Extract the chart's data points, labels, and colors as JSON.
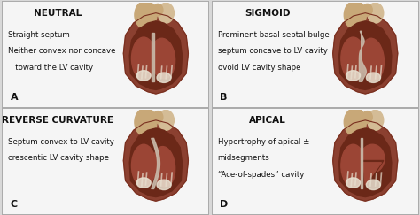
{
  "bg_color": "#d8d8d8",
  "panel_bg": "#f5f5f5",
  "border_color": "#aaaaaa",
  "text_color": "#111111",
  "panels": [
    {
      "id": "A",
      "title": "NEUTRAL",
      "lines": [
        "Straight septum",
        "Neither convex nor concave",
        "   toward the LV cavity"
      ],
      "label": "A",
      "row": 0,
      "col": 0,
      "style": "neutral"
    },
    {
      "id": "B",
      "title": "SIGMOID",
      "lines": [
        "Prominent basal septal bulge",
        "septum concave to LV cavity",
        "ovoid LV cavity shape"
      ],
      "label": "B",
      "row": 0,
      "col": 1,
      "style": "sigmoid"
    },
    {
      "id": "C",
      "title": "REVERSE CURVATURE",
      "lines": [
        "Septum convex to LV cavity",
        "crescentic LV cavity shape"
      ],
      "label": "C",
      "row": 1,
      "col": 0,
      "style": "reverse"
    },
    {
      "id": "D",
      "title": "APICAL",
      "lines": [
        "Hypertrophy of apical ±",
        "midsegments",
        "“Ace-of-spades” cavity"
      ],
      "label": "D",
      "row": 1,
      "col": 1,
      "style": "apical"
    }
  ],
  "title_fontsize": 7.5,
  "body_fontsize": 6.2,
  "label_fontsize": 8,
  "colors": {
    "heart_outer": "#8B4030",
    "heart_mid": "#6B2818",
    "heart_inner": "#7B3525",
    "lv_cavity": "#8B3A2A",
    "rv_cavity": "#7A3020",
    "septum_light": "#C8B8A8",
    "vessel_tan": "#C8A878",
    "vessel_light": "#D4BC96",
    "papillary": "#C0B0A0",
    "white_struct": "#E8E0D0",
    "heart_muscle": "#9B4535",
    "outer_border": "#7A3020"
  }
}
